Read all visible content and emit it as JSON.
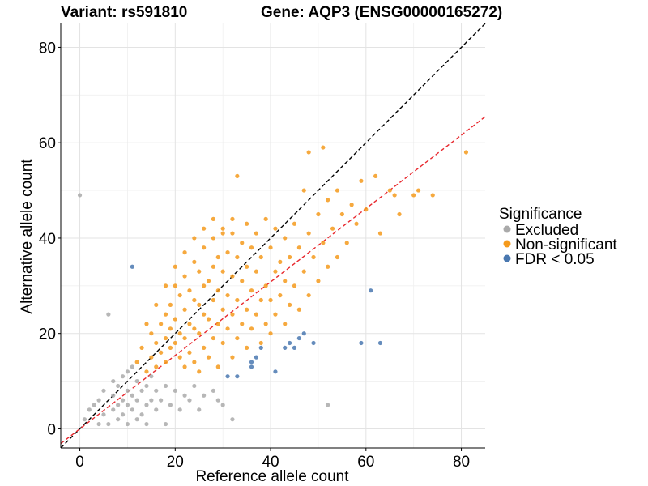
{
  "chart_data": {
    "type": "scatter",
    "title_left": "Variant: rs591810",
    "title_right": "Gene: AQP3 (ENSG00000165272)",
    "xlabel": "Reference allele count",
    "ylabel": "Alternative allele count",
    "xlim": [
      -4,
      85
    ],
    "ylim": [
      -4,
      85
    ],
    "xticks": [
      0,
      20,
      40,
      60,
      80
    ],
    "yticks": [
      0,
      20,
      40,
      60,
      80
    ],
    "grid": true,
    "legend": {
      "title": "Significance",
      "position": "right",
      "entries": [
        {
          "label": "Excluded",
          "color": "#aaaaaa"
        },
        {
          "label": "Non-significant",
          "color": "#f59a1c"
        },
        {
          "label": "FDR < 0.05",
          "color": "#4a78b0"
        }
      ]
    },
    "reference_lines": [
      {
        "name": "identity",
        "slope": 1,
        "intercept": 0,
        "color": "#000000",
        "style": "dashed"
      },
      {
        "name": "fit",
        "slope": 0.77,
        "intercept": 0,
        "color": "#e8282e",
        "style": "dashed"
      }
    ],
    "series": [
      {
        "name": "Excluded",
        "color": "#aaaaaa",
        "points": [
          [
            0,
            49
          ],
          [
            1,
            2
          ],
          [
            2,
            4
          ],
          [
            3,
            5
          ],
          [
            4,
            1
          ],
          [
            4,
            6
          ],
          [
            5,
            3
          ],
          [
            5,
            8
          ],
          [
            6,
            24
          ],
          [
            6,
            1
          ],
          [
            7,
            4
          ],
          [
            7,
            7
          ],
          [
            7,
            10
          ],
          [
            8,
            2
          ],
          [
            8,
            5
          ],
          [
            8,
            9
          ],
          [
            9,
            3
          ],
          [
            9,
            6
          ],
          [
            9,
            11
          ],
          [
            10,
            1
          ],
          [
            10,
            5
          ],
          [
            10,
            8
          ],
          [
            10,
            12
          ],
          [
            11,
            4
          ],
          [
            11,
            7
          ],
          [
            11,
            13
          ],
          [
            12,
            2
          ],
          [
            12,
            6
          ],
          [
            12,
            10
          ],
          [
            13,
            3
          ],
          [
            13,
            8
          ],
          [
            14,
            5
          ],
          [
            14,
            9
          ],
          [
            14,
            1
          ],
          [
            15,
            6
          ],
          [
            15,
            11
          ],
          [
            16,
            4
          ],
          [
            16,
            8
          ],
          [
            17,
            6
          ],
          [
            18,
            1
          ],
          [
            18,
            9
          ],
          [
            19,
            5
          ],
          [
            20,
            8
          ],
          [
            21,
            4
          ],
          [
            22,
            7
          ],
          [
            23,
            6
          ],
          [
            24,
            9
          ],
          [
            25,
            4
          ],
          [
            26,
            7
          ],
          [
            28,
            8
          ],
          [
            29,
            6
          ],
          [
            30,
            5
          ],
          [
            32,
            2
          ],
          [
            52,
            5
          ]
        ]
      },
      {
        "name": "Non-significant",
        "color": "#f59a1c",
        "points": [
          [
            12,
            14
          ],
          [
            13,
            17
          ],
          [
            14,
            12
          ],
          [
            15,
            20
          ],
          [
            15,
            15
          ],
          [
            16,
            18
          ],
          [
            16,
            13
          ],
          [
            17,
            22
          ],
          [
            17,
            16
          ],
          [
            18,
            24
          ],
          [
            18,
            19
          ],
          [
            18,
            14
          ],
          [
            19,
            26
          ],
          [
            19,
            21
          ],
          [
            19,
            17
          ],
          [
            20,
            30
          ],
          [
            20,
            23
          ],
          [
            20,
            18
          ],
          [
            21,
            28
          ],
          [
            21,
            20
          ],
          [
            21,
            15
          ],
          [
            22,
            32
          ],
          [
            22,
            25
          ],
          [
            22,
            19
          ],
          [
            22,
            13
          ],
          [
            23,
            29
          ],
          [
            23,
            22
          ],
          [
            23,
            16
          ],
          [
            24,
            35
          ],
          [
            24,
            27
          ],
          [
            24,
            21
          ],
          [
            24,
            14
          ],
          [
            25,
            33
          ],
          [
            25,
            26
          ],
          [
            25,
            20
          ],
          [
            25,
            12
          ],
          [
            26,
            38
          ],
          [
            26,
            30
          ],
          [
            26,
            24
          ],
          [
            26,
            17
          ],
          [
            27,
            31
          ],
          [
            27,
            23
          ],
          [
            27,
            15
          ],
          [
            28,
            40
          ],
          [
            28,
            34
          ],
          [
            28,
            27
          ],
          [
            28,
            19
          ],
          [
            29,
            36
          ],
          [
            29,
            29
          ],
          [
            29,
            22
          ],
          [
            29,
            13
          ],
          [
            30,
            42
          ],
          [
            30,
            33
          ],
          [
            30,
            25
          ],
          [
            30,
            18
          ],
          [
            31,
            37
          ],
          [
            31,
            28
          ],
          [
            31,
            21
          ],
          [
            32,
            41
          ],
          [
            32,
            32
          ],
          [
            32,
            24
          ],
          [
            32,
            15
          ],
          [
            33,
            53
          ],
          [
            33,
            36
          ],
          [
            33,
            27
          ],
          [
            33,
            19
          ],
          [
            34,
            39
          ],
          [
            34,
            31
          ],
          [
            34,
            22
          ],
          [
            35,
            43
          ],
          [
            35,
            34
          ],
          [
            35,
            25
          ],
          [
            35,
            17
          ],
          [
            36,
            38
          ],
          [
            36,
            29
          ],
          [
            36,
            21
          ],
          [
            37,
            41
          ],
          [
            37,
            33
          ],
          [
            37,
            24
          ],
          [
            38,
            36
          ],
          [
            38,
            27
          ],
          [
            38,
            18
          ],
          [
            39,
            44
          ],
          [
            39,
            30
          ],
          [
            39,
            22
          ],
          [
            40,
            38
          ],
          [
            40,
            27
          ],
          [
            40,
            20
          ],
          [
            41,
            42
          ],
          [
            41,
            33
          ],
          [
            41,
            24
          ],
          [
            42,
            35
          ],
          [
            42,
            28
          ],
          [
            43,
            40
          ],
          [
            43,
            31
          ],
          [
            43,
            22
          ],
          [
            44,
            36
          ],
          [
            44,
            26
          ],
          [
            45,
            43
          ],
          [
            45,
            30
          ],
          [
            46,
            38
          ],
          [
            46,
            25
          ],
          [
            47,
            50
          ],
          [
            47,
            33
          ],
          [
            48,
            58
          ],
          [
            48,
            41
          ],
          [
            48,
            28
          ],
          [
            49,
            36
          ],
          [
            50,
            45
          ],
          [
            50,
            31
          ],
          [
            51,
            59
          ],
          [
            51,
            39
          ],
          [
            52,
            48
          ],
          [
            52,
            34
          ],
          [
            53,
            42
          ],
          [
            54,
            50
          ],
          [
            54,
            36
          ],
          [
            55,
            45
          ],
          [
            56,
            39
          ],
          [
            57,
            47
          ],
          [
            58,
            43
          ],
          [
            59,
            52
          ],
          [
            60,
            46
          ],
          [
            62,
            53
          ],
          [
            63,
            41
          ],
          [
            65,
            50
          ],
          [
            66,
            49
          ],
          [
            67,
            45
          ],
          [
            70,
            49
          ],
          [
            71,
            50
          ],
          [
            74,
            49
          ],
          [
            81,
            58
          ],
          [
            14,
            22
          ],
          [
            16,
            26
          ],
          [
            18,
            30
          ],
          [
            20,
            34
          ],
          [
            22,
            37
          ],
          [
            24,
            40
          ],
          [
            26,
            42
          ],
          [
            28,
            44
          ],
          [
            30,
            41
          ],
          [
            32,
            44
          ]
        ]
      },
      {
        "name": "FDR < 0.05",
        "color": "#4a78b0",
        "points": [
          [
            11,
            34
          ],
          [
            31,
            11
          ],
          [
            33,
            11
          ],
          [
            36,
            13
          ],
          [
            36,
            14
          ],
          [
            37,
            15
          ],
          [
            38,
            17
          ],
          [
            41,
            12
          ],
          [
            43,
            17
          ],
          [
            44,
            18
          ],
          [
            45,
            17
          ],
          [
            46,
            19
          ],
          [
            47,
            20
          ],
          [
            49,
            18
          ],
          [
            59,
            18
          ],
          [
            61,
            29
          ],
          [
            63,
            18
          ]
        ]
      }
    ]
  }
}
